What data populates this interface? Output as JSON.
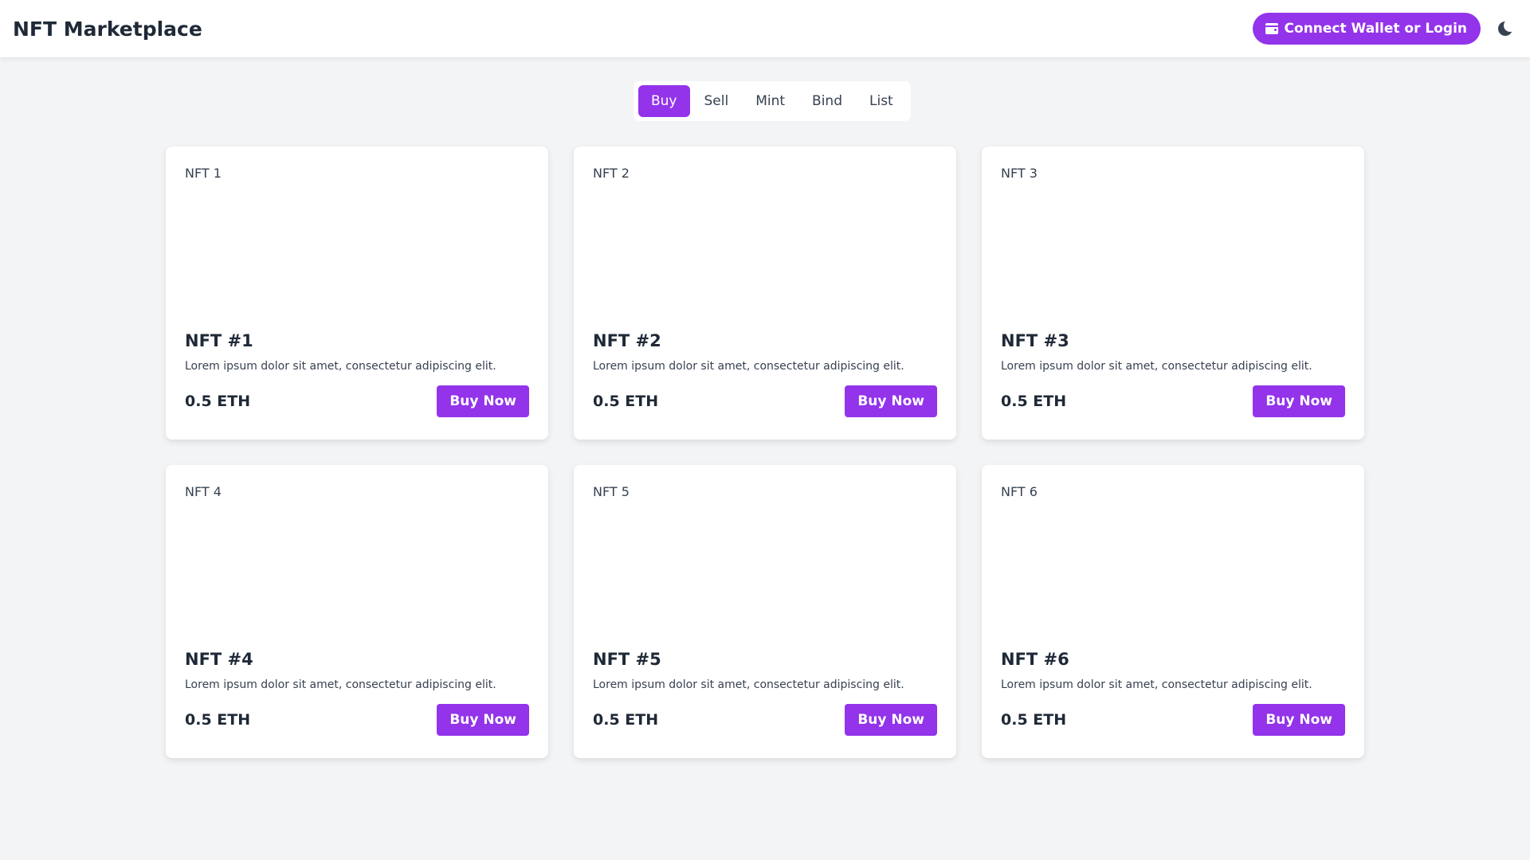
{
  "header": {
    "title": "NFT Marketplace",
    "wallet_button_label": "Connect Wallet or Login",
    "wallet_icon": "wallet-icon",
    "theme_icon": "moon-icon"
  },
  "tabs": [
    {
      "label": "Buy",
      "active": true
    },
    {
      "label": "Sell",
      "active": false
    },
    {
      "label": "Mint",
      "active": false
    },
    {
      "label": "Bind",
      "active": false
    },
    {
      "label": "List",
      "active": false
    }
  ],
  "cards": [
    {
      "image_alt": "NFT 1",
      "title": "NFT #1",
      "description": "Lorem ipsum dolor sit amet, consectetur adipiscing elit.",
      "price": "0.5 ETH",
      "button": "Buy Now"
    },
    {
      "image_alt": "NFT 2",
      "title": "NFT #2",
      "description": "Lorem ipsum dolor sit amet, consectetur adipiscing elit.",
      "price": "0.5 ETH",
      "button": "Buy Now"
    },
    {
      "image_alt": "NFT 3",
      "title": "NFT #3",
      "description": "Lorem ipsum dolor sit amet, consectetur adipiscing elit.",
      "price": "0.5 ETH",
      "button": "Buy Now"
    },
    {
      "image_alt": "NFT 4",
      "title": "NFT #4",
      "description": "Lorem ipsum dolor sit amet, consectetur adipiscing elit.",
      "price": "0.5 ETH",
      "button": "Buy Now"
    },
    {
      "image_alt": "NFT 5",
      "title": "NFT #5",
      "description": "Lorem ipsum dolor sit amet, consectetur adipiscing elit.",
      "price": "0.5 ETH",
      "button": "Buy Now"
    },
    {
      "image_alt": "NFT 6",
      "title": "NFT #6",
      "description": "Lorem ipsum dolor sit amet, consectetur adipiscing elit.",
      "price": "0.5 ETH",
      "button": "Buy Now"
    }
  ],
  "colors": {
    "accent": "#9333ea",
    "background": "#f3f4f6",
    "card": "#ffffff",
    "text": "#1f2937"
  }
}
